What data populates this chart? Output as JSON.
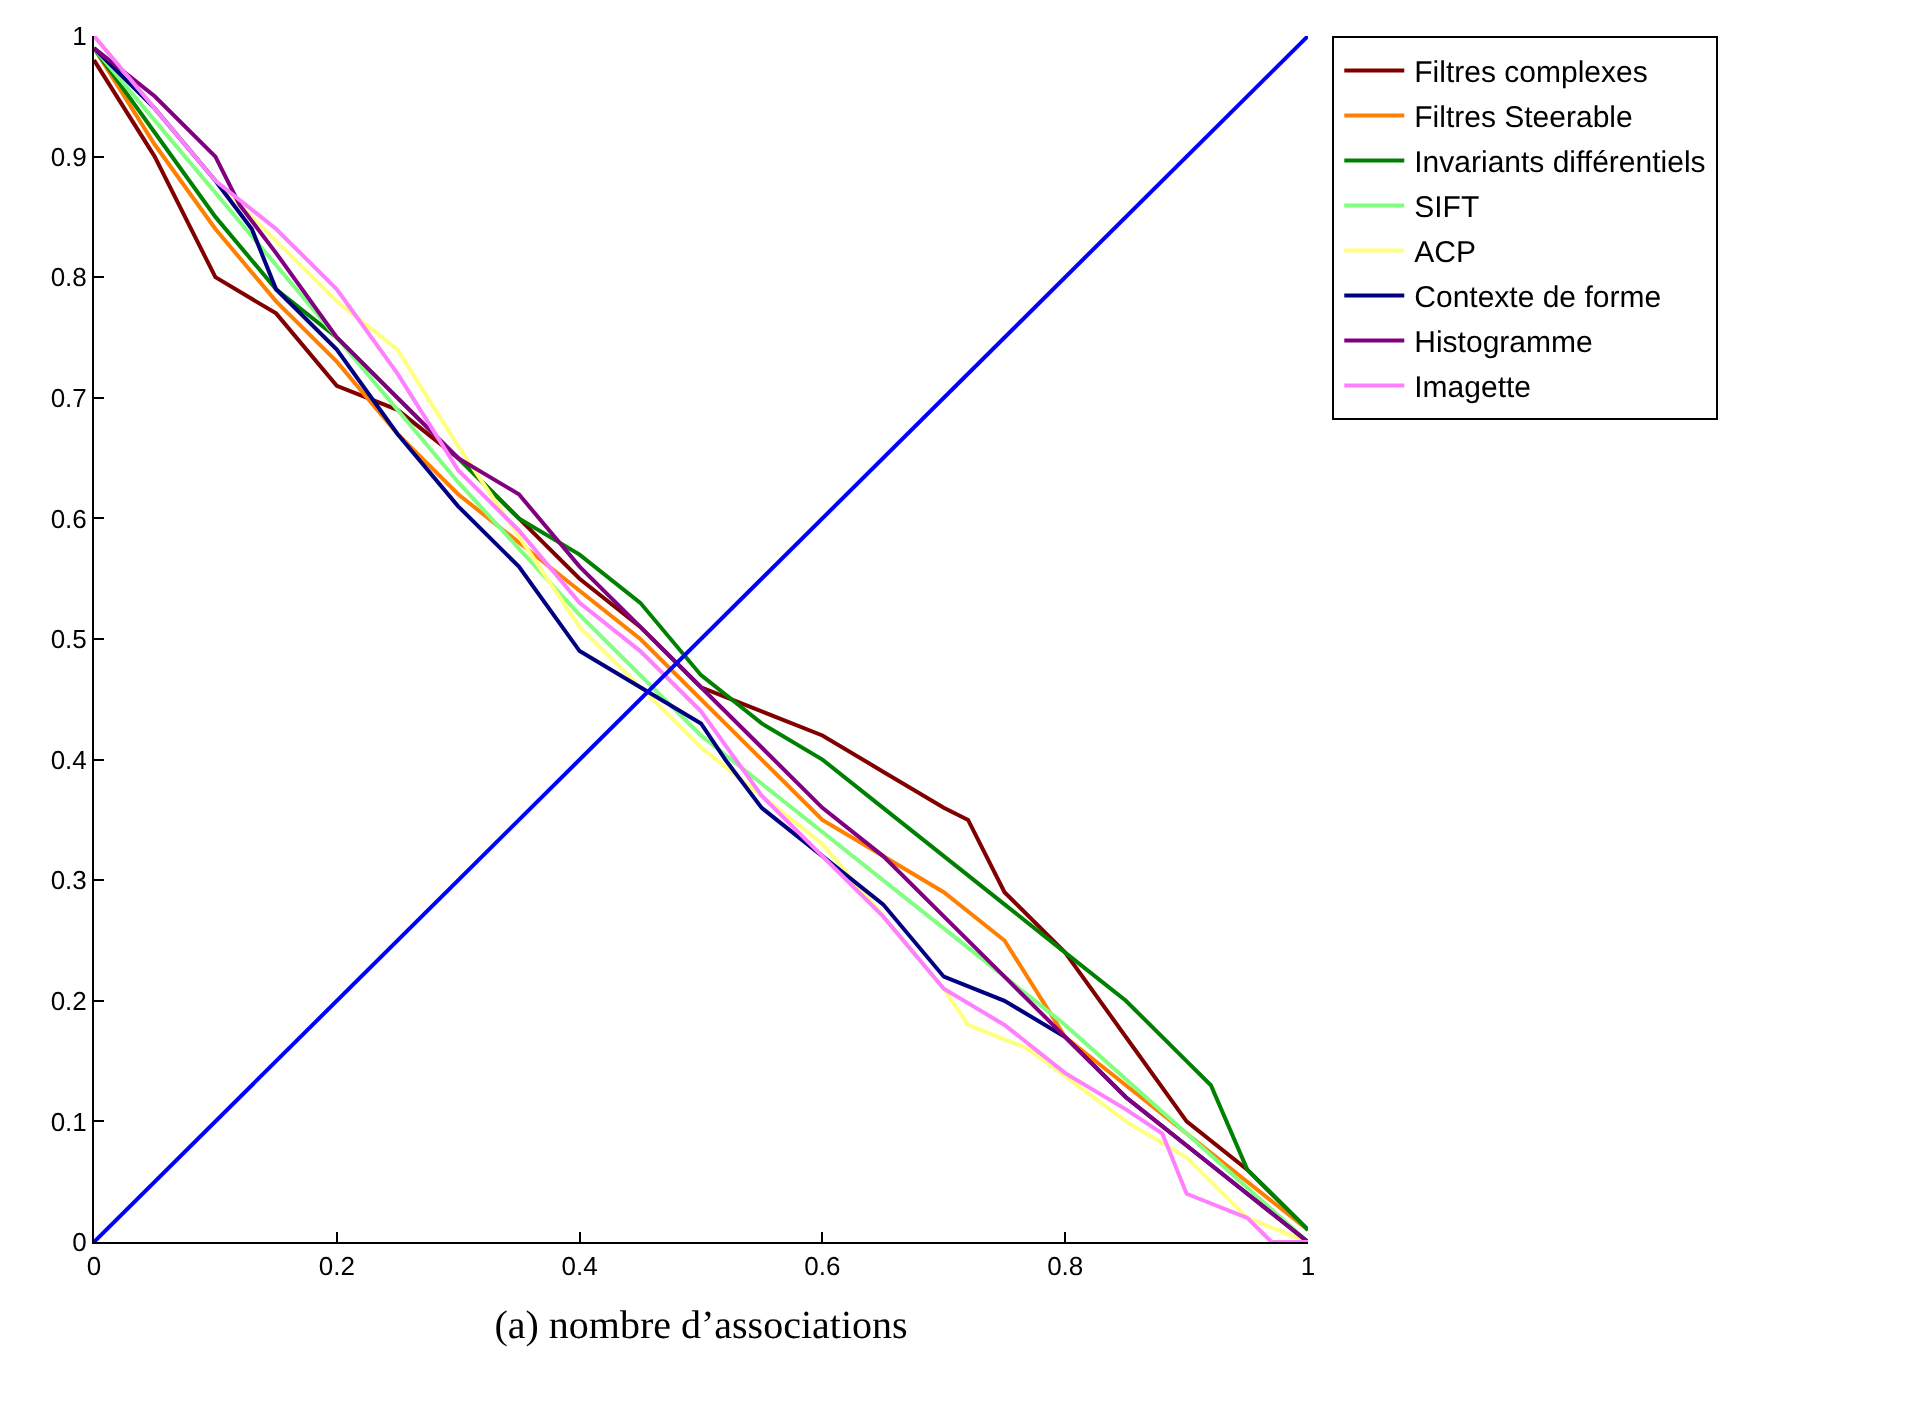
{
  "chart_data": {
    "type": "line",
    "xlabel": "(a) nombre d’associations",
    "xlim": [
      0,
      1
    ],
    "ylim": [
      0,
      1
    ],
    "xticks": [
      0,
      0.2,
      0.4,
      0.6,
      0.8,
      1
    ],
    "yticks": [
      0,
      0.1,
      0.2,
      0.3,
      0.4,
      0.5,
      0.6,
      0.7,
      0.8,
      0.9,
      1
    ],
    "legend": "top right",
    "line_style": "solid",
    "series": [
      {
        "name": "Filtres complexes",
        "color": "#800000",
        "x": [
          0,
          0.05,
          0.1,
          0.15,
          0.2,
          0.25,
          0.3,
          0.35,
          0.4,
          0.45,
          0.5,
          0.55,
          0.6,
          0.65,
          0.7,
          0.72,
          0.75,
          0.8,
          0.85,
          0.9,
          0.95,
          1
        ],
        "values": [
          0.98,
          0.9,
          0.8,
          0.77,
          0.71,
          0.69,
          0.65,
          0.6,
          0.55,
          0.51,
          0.46,
          0.44,
          0.42,
          0.39,
          0.36,
          0.35,
          0.29,
          0.24,
          0.17,
          0.1,
          0.06,
          0.01
        ]
      },
      {
        "name": "Filtres Steerable",
        "color": "#ff8000",
        "x": [
          0,
          0.05,
          0.1,
          0.15,
          0.2,
          0.25,
          0.3,
          0.35,
          0.4,
          0.45,
          0.5,
          0.55,
          0.6,
          0.65,
          0.7,
          0.75,
          0.8,
          0.85,
          0.9,
          0.95,
          1
        ],
        "values": [
          0.99,
          0.91,
          0.84,
          0.78,
          0.73,
          0.67,
          0.62,
          0.58,
          0.54,
          0.5,
          0.45,
          0.4,
          0.35,
          0.32,
          0.29,
          0.25,
          0.17,
          0.13,
          0.09,
          0.05,
          0.01
        ]
      },
      {
        "name": "Invariants différentiels",
        "color": "#008000",
        "x": [
          0,
          0.05,
          0.1,
          0.15,
          0.2,
          0.25,
          0.3,
          0.35,
          0.4,
          0.45,
          0.5,
          0.55,
          0.6,
          0.65,
          0.7,
          0.75,
          0.8,
          0.85,
          0.9,
          0.92,
          0.95,
          1
        ],
        "values": [
          0.99,
          0.92,
          0.85,
          0.79,
          0.75,
          0.7,
          0.65,
          0.6,
          0.57,
          0.53,
          0.47,
          0.43,
          0.4,
          0.36,
          0.32,
          0.28,
          0.24,
          0.2,
          0.15,
          0.13,
          0.06,
          0.01
        ]
      },
      {
        "name": "SIFT",
        "color": "#80ff80",
        "x": [
          0,
          0.1,
          0.2,
          0.3,
          0.4,
          0.5,
          0.6,
          0.7,
          0.8,
          0.9,
          1
        ],
        "values": [
          0.99,
          0.87,
          0.75,
          0.63,
          0.52,
          0.42,
          0.34,
          0.26,
          0.18,
          0.09,
          0
        ]
      },
      {
        "name": "ACP",
        "color": "#ffff80",
        "x": [
          0,
          0.1,
          0.2,
          0.25,
          0.3,
          0.4,
          0.5,
          0.6,
          0.7,
          0.72,
          0.77,
          0.85,
          0.9,
          0.95,
          1
        ],
        "values": [
          1,
          0.88,
          0.78,
          0.74,
          0.66,
          0.51,
          0.41,
          0.33,
          0.21,
          0.18,
          0.16,
          0.1,
          0.07,
          0.02,
          0
        ]
      },
      {
        "name": "Contexte de forme",
        "color": "#000080",
        "x": [
          0,
          0.05,
          0.1,
          0.13,
          0.15,
          0.2,
          0.25,
          0.3,
          0.35,
          0.4,
          0.45,
          0.5,
          0.52,
          0.55,
          0.6,
          0.65,
          0.7,
          0.75,
          0.8,
          0.85,
          0.9,
          0.95,
          1
        ],
        "values": [
          0.99,
          0.94,
          0.88,
          0.84,
          0.79,
          0.74,
          0.67,
          0.61,
          0.56,
          0.49,
          0.46,
          0.43,
          0.4,
          0.36,
          0.32,
          0.28,
          0.22,
          0.2,
          0.17,
          0.12,
          0.08,
          0.04,
          0
        ]
      },
      {
        "name": "Histogramme",
        "color": "#800080",
        "x": [
          0,
          0.05,
          0.1,
          0.12,
          0.15,
          0.2,
          0.25,
          0.3,
          0.35,
          0.4,
          0.45,
          0.5,
          0.55,
          0.6,
          0.65,
          0.7,
          0.75,
          0.8,
          0.85,
          0.9,
          0.95,
          1
        ],
        "values": [
          0.99,
          0.95,
          0.9,
          0.86,
          0.82,
          0.75,
          0.7,
          0.65,
          0.62,
          0.56,
          0.51,
          0.46,
          0.41,
          0.36,
          0.32,
          0.27,
          0.22,
          0.17,
          0.12,
          0.08,
          0.04,
          0
        ]
      },
      {
        "name": "Imagette",
        "color": "#ff80ff",
        "x": [
          0,
          0.05,
          0.1,
          0.15,
          0.2,
          0.25,
          0.3,
          0.35,
          0.4,
          0.45,
          0.5,
          0.55,
          0.6,
          0.65,
          0.7,
          0.75,
          0.8,
          0.85,
          0.88,
          0.9,
          0.95,
          0.97,
          1
        ],
        "values": [
          1,
          0.94,
          0.88,
          0.84,
          0.79,
          0.72,
          0.64,
          0.59,
          0.53,
          0.49,
          0.44,
          0.37,
          0.32,
          0.27,
          0.21,
          0.18,
          0.14,
          0.11,
          0.09,
          0.04,
          0.02,
          0,
          0
        ]
      },
      {
        "color": "#0000ff",
        "x": [
          0,
          1
        ],
        "values": [
          0,
          1
        ]
      }
    ]
  }
}
